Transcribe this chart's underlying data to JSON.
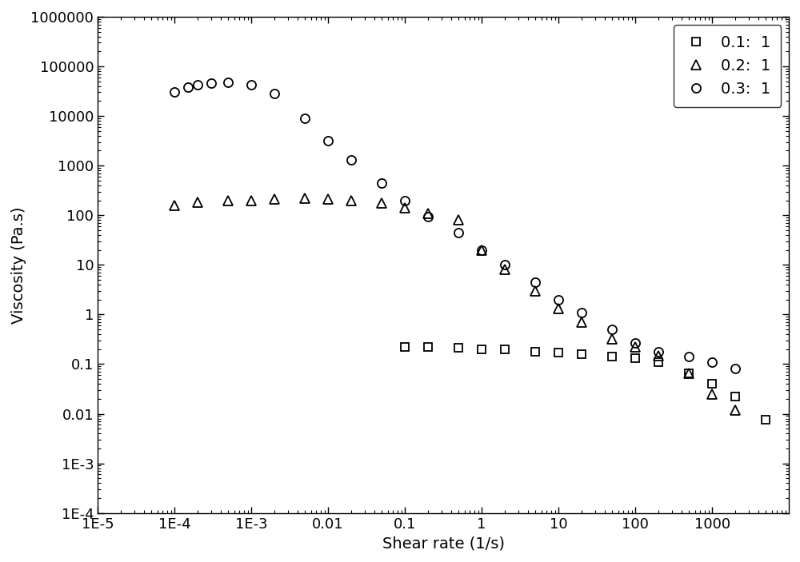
{
  "title": "",
  "xlabel": "Shear rate (1/s)",
  "ylabel": "Viscosity (Pa.s)",
  "xlim_log": [
    -5,
    4
  ],
  "ylim_log": [
    -4,
    6
  ],
  "series": [
    {
      "label": "0.1:  1",
      "marker": "s",
      "markersize": 7,
      "color": "black",
      "fillstyle": "none",
      "x": [
        0.1,
        0.2,
        0.5,
        1.0,
        2.0,
        5.0,
        10.0,
        20.0,
        50.0,
        100.0,
        200.0,
        500.0,
        1000.0,
        2000.0,
        5000.0
      ],
      "y": [
        0.22,
        0.22,
        0.21,
        0.2,
        0.2,
        0.18,
        0.17,
        0.16,
        0.14,
        0.13,
        0.11,
        0.065,
        0.04,
        0.022,
        0.0075
      ]
    },
    {
      "label": "0.2:  1",
      "marker": "^",
      "markersize": 8,
      "color": "black",
      "fillstyle": "none",
      "x": [
        0.0001,
        0.0002,
        0.0005,
        0.001,
        0.002,
        0.005,
        0.01,
        0.02,
        0.05,
        0.1,
        0.2,
        0.5,
        1.0,
        2.0,
        5.0,
        10.0,
        20.0,
        50.0,
        100.0,
        200.0,
        500.0,
        1000.0,
        2000.0
      ],
      "y": [
        160.0,
        180.0,
        195.0,
        200.0,
        210.0,
        220.0,
        210.0,
        200.0,
        175.0,
        140.0,
        110.0,
        80.0,
        20.0,
        8.0,
        3.0,
        1.3,
        0.7,
        0.32,
        0.22,
        0.15,
        0.065,
        0.025,
        0.012
      ]
    },
    {
      "label": "0.3:  1",
      "marker": "o",
      "markersize": 8,
      "color": "black",
      "fillstyle": "none",
      "x": [
        0.0001,
        0.00015,
        0.0002,
        0.0003,
        0.0005,
        0.001,
        0.002,
        0.005,
        0.01,
        0.02,
        0.05,
        0.1,
        0.2,
        0.5,
        1.0,
        2.0,
        5.0,
        10.0,
        20.0,
        50.0,
        100.0,
        200.0,
        500.0,
        1000.0,
        2000.0
      ],
      "y": [
        30000.0,
        38000.0,
        42000.0,
        45000.0,
        48000.0,
        42000.0,
        28000.0,
        9000.0,
        3200.0,
        1300.0,
        450.0,
        200.0,
        95.0,
        45.0,
        20.0,
        10.0,
        4.5,
        2.0,
        1.1,
        0.5,
        0.27,
        0.18,
        0.14,
        0.11,
        0.08
      ]
    }
  ],
  "legend_loc": "upper right",
  "font_size": 14,
  "tick_label_size": 13,
  "x_major_ticks": [
    1e-05,
    0.0001,
    0.001,
    0.01,
    0.1,
    1,
    10,
    100,
    1000
  ],
  "x_tick_labels": [
    "1E-5",
    "1E-4",
    "1E-3",
    "0.01",
    "0.1",
    "1",
    "10",
    "100",
    "1000"
  ],
  "y_major_ticks": [
    0.0001,
    0.001,
    0.01,
    0.1,
    1,
    10,
    100,
    1000,
    10000,
    100000,
    1000000
  ],
  "y_tick_labels": [
    "1E-4",
    "1E-3",
    "0.01",
    "0.1",
    "1",
    "10",
    "100",
    "1000",
    "10000",
    "100000",
    "1000000"
  ]
}
